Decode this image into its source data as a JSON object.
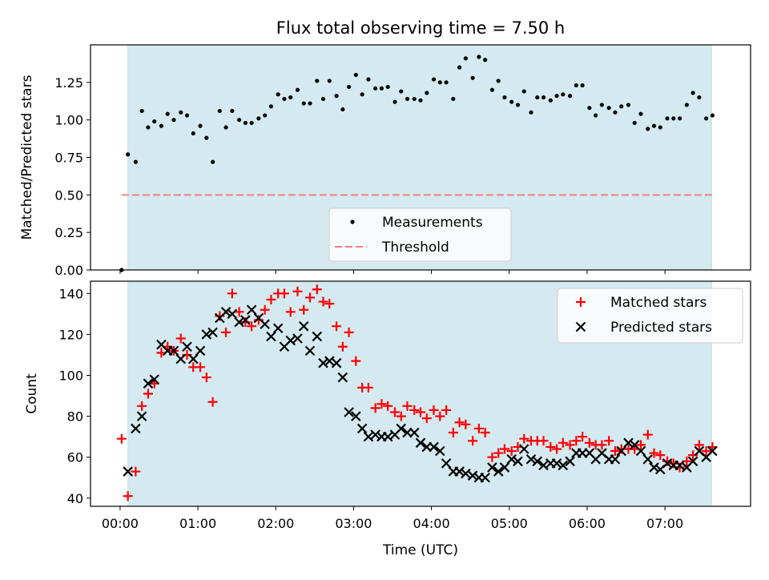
{
  "chart_data": [
    {
      "type": "scatter",
      "title": "Flux total observing time = 7.50 h",
      "xlabel": "",
      "ylabel": "Matched/Predicted stars",
      "xlim_hours": [
        -0.38,
        8.1
      ],
      "ylim": [
        0,
        1.5
      ],
      "yticks": [
        0.0,
        0.25,
        0.5,
        0.75,
        1.0,
        1.25
      ],
      "ytick_labels": [
        "0.00",
        "0.25",
        "0.50",
        "0.75",
        "1.00",
        "1.25"
      ],
      "observing_window_hours": [
        0.1,
        7.6
      ],
      "window_color": "#d4eaf0",
      "threshold": 0.5,
      "legend": {
        "placement": "lower center",
        "entries": [
          "Measurements",
          "Threshold"
        ]
      },
      "series": [
        {
          "name": "Measurements",
          "marker": "dot",
          "color": "#000000",
          "x": [
            0.02,
            0.1,
            0.2,
            0.28,
            0.36,
            0.44,
            0.53,
            0.61,
            0.69,
            0.78,
            0.86,
            0.94,
            1.03,
            1.11,
            1.19,
            1.28,
            1.36,
            1.44,
            1.53,
            1.61,
            1.69,
            1.78,
            1.86,
            1.94,
            2.03,
            2.11,
            2.19,
            2.28,
            2.36,
            2.44,
            2.53,
            2.61,
            2.69,
            2.78,
            2.86,
            2.94,
            3.03,
            3.11,
            3.19,
            3.28,
            3.36,
            3.44,
            3.53,
            3.61,
            3.69,
            3.78,
            3.86,
            3.94,
            4.03,
            4.11,
            4.19,
            4.28,
            4.36,
            4.44,
            4.53,
            4.61,
            4.69,
            4.78,
            4.86,
            4.94,
            5.03,
            5.11,
            5.19,
            5.28,
            5.36,
            5.44,
            5.53,
            5.61,
            5.69,
            5.78,
            5.86,
            5.94,
            6.03,
            6.11,
            6.19,
            6.28,
            6.36,
            6.44,
            6.53,
            6.61,
            6.69,
            6.78,
            6.86,
            6.94,
            7.03,
            7.11,
            7.19,
            7.28,
            7.36,
            7.44,
            7.53,
            7.61
          ],
          "y": [
            0.0,
            0.77,
            0.72,
            1.06,
            0.95,
            0.99,
            0.96,
            1.04,
            1.0,
            1.05,
            1.03,
            0.91,
            0.96,
            0.88,
            0.72,
            1.06,
            0.95,
            1.06,
            1.0,
            0.98,
            0.98,
            1.01,
            1.03,
            1.09,
            1.17,
            1.14,
            1.15,
            1.2,
            1.11,
            1.11,
            1.26,
            1.14,
            1.26,
            1.16,
            1.07,
            1.22,
            1.3,
            1.17,
            1.27,
            1.21,
            1.21,
            1.22,
            1.12,
            1.19,
            1.14,
            1.14,
            1.13,
            1.18,
            1.27,
            1.25,
            1.25,
            1.14,
            1.35,
            1.41,
            1.28,
            1.42,
            1.4,
            1.2,
            1.26,
            1.15,
            1.12,
            1.1,
            1.19,
            1.05,
            1.15,
            1.15,
            1.13,
            1.16,
            1.17,
            1.16,
            1.23,
            1.23,
            1.08,
            1.03,
            1.1,
            1.08,
            1.05,
            1.09,
            1.1,
            0.98,
            1.04,
            0.94,
            0.96,
            0.95,
            1.01,
            1.01,
            1.01,
            1.1,
            1.18,
            1.15,
            1.01,
            1.03
          ]
        },
        {
          "name": "Threshold",
          "marker": "dashed-line",
          "color": "#f08080",
          "x": [
            0.02,
            7.61
          ],
          "y": [
            0.5,
            0.5
          ]
        }
      ]
    },
    {
      "type": "scatter",
      "title": "",
      "xlabel": "Time (UTC)",
      "ylabel": "Count",
      "xlim_hours": [
        -0.38,
        8.1
      ],
      "ylim": [
        36,
        146
      ],
      "xticks_hours": [
        0,
        1,
        2,
        3,
        4,
        5,
        6,
        7
      ],
      "xtick_labels": [
        "00:00",
        "01:00",
        "02:00",
        "03:00",
        "04:00",
        "05:00",
        "06:00",
        "07:00"
      ],
      "yticks": [
        40,
        60,
        80,
        100,
        120,
        140
      ],
      "ytick_labels": [
        "40",
        "60",
        "80",
        "100",
        "120",
        "140"
      ],
      "observing_window_hours": [
        0.1,
        7.6
      ],
      "window_color": "#d4eaf0",
      "legend": {
        "placement": "upper right",
        "entries": [
          "Matched stars",
          "Predicted stars"
        ]
      },
      "series": [
        {
          "name": "Matched stars",
          "marker": "plus",
          "color": "#ff0000",
          "x": [
            0.02,
            0.1,
            0.2,
            0.28,
            0.36,
            0.44,
            0.53,
            0.61,
            0.69,
            0.78,
            0.86,
            0.94,
            1.03,
            1.11,
            1.19,
            1.28,
            1.36,
            1.44,
            1.53,
            1.61,
            1.69,
            1.78,
            1.86,
            1.94,
            2.03,
            2.11,
            2.19,
            2.28,
            2.36,
            2.44,
            2.53,
            2.61,
            2.69,
            2.78,
            2.86,
            2.94,
            3.03,
            3.11,
            3.19,
            3.28,
            3.36,
            3.44,
            3.53,
            3.61,
            3.69,
            3.78,
            3.86,
            3.94,
            4.03,
            4.11,
            4.19,
            4.28,
            4.36,
            4.44,
            4.53,
            4.61,
            4.69,
            4.78,
            4.86,
            4.94,
            5.03,
            5.11,
            5.19,
            5.28,
            5.36,
            5.44,
            5.53,
            5.61,
            5.69,
            5.78,
            5.86,
            5.94,
            6.03,
            6.11,
            6.19,
            6.28,
            6.36,
            6.44,
            6.53,
            6.61,
            6.69,
            6.78,
            6.86,
            6.94,
            7.03,
            7.11,
            7.19,
            7.28,
            7.36,
            7.44,
            7.53,
            7.61
          ],
          "y": [
            69,
            41,
            53,
            85,
            91,
            96,
            111,
            114,
            112,
            118,
            110,
            104,
            104,
            99,
            87,
            129,
            121,
            140,
            131,
            126,
            124,
            127,
            132,
            137,
            140,
            140,
            131,
            141,
            132,
            138,
            142,
            136,
            135,
            124,
            114,
            121,
            107,
            94,
            94,
            84,
            86,
            85,
            82,
            80,
            85,
            83,
            82,
            79,
            83,
            80,
            83,
            72,
            77,
            76,
            68,
            74,
            72,
            60,
            62,
            64,
            63,
            65,
            69,
            68,
            68,
            68,
            65,
            64,
            67,
            66,
            68,
            70,
            67,
            66,
            66,
            68,
            63,
            64,
            64,
            64,
            66,
            71,
            62,
            61,
            58,
            57,
            55,
            58,
            61,
            66,
            63,
            65
          ]
        },
        {
          "name": "Predicted stars",
          "marker": "x",
          "color": "#000000",
          "x": [
            0.1,
            0.2,
            0.28,
            0.36,
            0.44,
            0.53,
            0.61,
            0.69,
            0.78,
            0.86,
            0.94,
            1.03,
            1.11,
            1.19,
            1.28,
            1.36,
            1.44,
            1.53,
            1.61,
            1.69,
            1.78,
            1.86,
            1.94,
            2.03,
            2.11,
            2.19,
            2.28,
            2.36,
            2.44,
            2.53,
            2.61,
            2.69,
            2.78,
            2.86,
            2.94,
            3.03,
            3.11,
            3.19,
            3.28,
            3.36,
            3.44,
            3.53,
            3.61,
            3.69,
            3.78,
            3.86,
            3.94,
            4.03,
            4.11,
            4.19,
            4.28,
            4.36,
            4.44,
            4.53,
            4.61,
            4.69,
            4.78,
            4.86,
            4.94,
            5.03,
            5.11,
            5.19,
            5.28,
            5.36,
            5.44,
            5.53,
            5.61,
            5.69,
            5.78,
            5.86,
            5.94,
            6.03,
            6.11,
            6.19,
            6.28,
            6.36,
            6.44,
            6.53,
            6.61,
            6.69,
            6.78,
            6.86,
            6.94,
            7.03,
            7.11,
            7.19,
            7.28,
            7.36,
            7.44,
            7.53,
            7.61
          ],
          "y": [
            53,
            74,
            80,
            96,
            98,
            115,
            112,
            112,
            108,
            114,
            108,
            112,
            120,
            121,
            128,
            131,
            130,
            126,
            127,
            132,
            128,
            125,
            119,
            123,
            114,
            117,
            118,
            124,
            112,
            119,
            106,
            107,
            106,
            99,
            82,
            80,
            74,
            70,
            71,
            70,
            70,
            71,
            74,
            72,
            72,
            67,
            65,
            65,
            63,
            57,
            53,
            53,
            52,
            51,
            50,
            50,
            55,
            53,
            55,
            59,
            58,
            64,
            59,
            58,
            56,
            57,
            57,
            56,
            58,
            62,
            62,
            62,
            59,
            62,
            59,
            59,
            63,
            67,
            66,
            63,
            59,
            55,
            54,
            57,
            56,
            56,
            55,
            58,
            63,
            60,
            63
          ]
        }
      ]
    }
  ]
}
